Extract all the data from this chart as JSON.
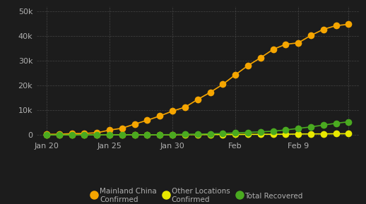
{
  "background_color": "#1c1c1c",
  "grid_color": "#484848",
  "text_color": "#b0b0b0",
  "mainland_china_confirmed": [
    278,
    326,
    547,
    639,
    916,
    1979,
    2737,
    4409,
    5970,
    7678,
    9658,
    11221,
    14341,
    17205,
    20440,
    24324,
    28018,
    31161,
    34546,
    36602,
    37198,
    40171,
    42638,
    44132,
    44653
  ],
  "other_locations_confirmed": [
    4,
    6,
    8,
    14,
    25,
    40,
    57,
    64,
    82,
    106,
    118,
    153,
    173,
    191,
    211,
    216,
    270,
    288,
    309,
    319,
    395,
    441,
    447,
    505,
    526
  ],
  "total_recovered": [
    28,
    30,
    32,
    34,
    40,
    49,
    51,
    60,
    103,
    124,
    171,
    243,
    327,
    475,
    623,
    843,
    1066,
    1261,
    1540,
    2050,
    2649,
    3281,
    3996,
    4740,
    5327
  ],
  "ylim": [
    -1500,
    52000
  ],
  "yticks": [
    0,
    10000,
    20000,
    30000,
    40000,
    50000
  ],
  "ytick_labels": [
    "0",
    "10k",
    "20k",
    "30k",
    "40k",
    "50k"
  ],
  "x_tick_positions": [
    0,
    5,
    10,
    15,
    20,
    24
  ],
  "x_tick_labels": [
    "Jan 20",
    "Jan 25",
    "Jan 30",
    "Feb",
    "Feb 9",
    ""
  ],
  "mainland_color": "#f5a500",
  "other_color": "#e8e800",
  "recovered_color": "#4aaa20",
  "line_width": 1.2,
  "marker_size": 7,
  "legend_mainland": "Mainland China\nConfirmed",
  "legend_other": "Other Locations\nConfirmed",
  "legend_recovered": "Total Recovered"
}
